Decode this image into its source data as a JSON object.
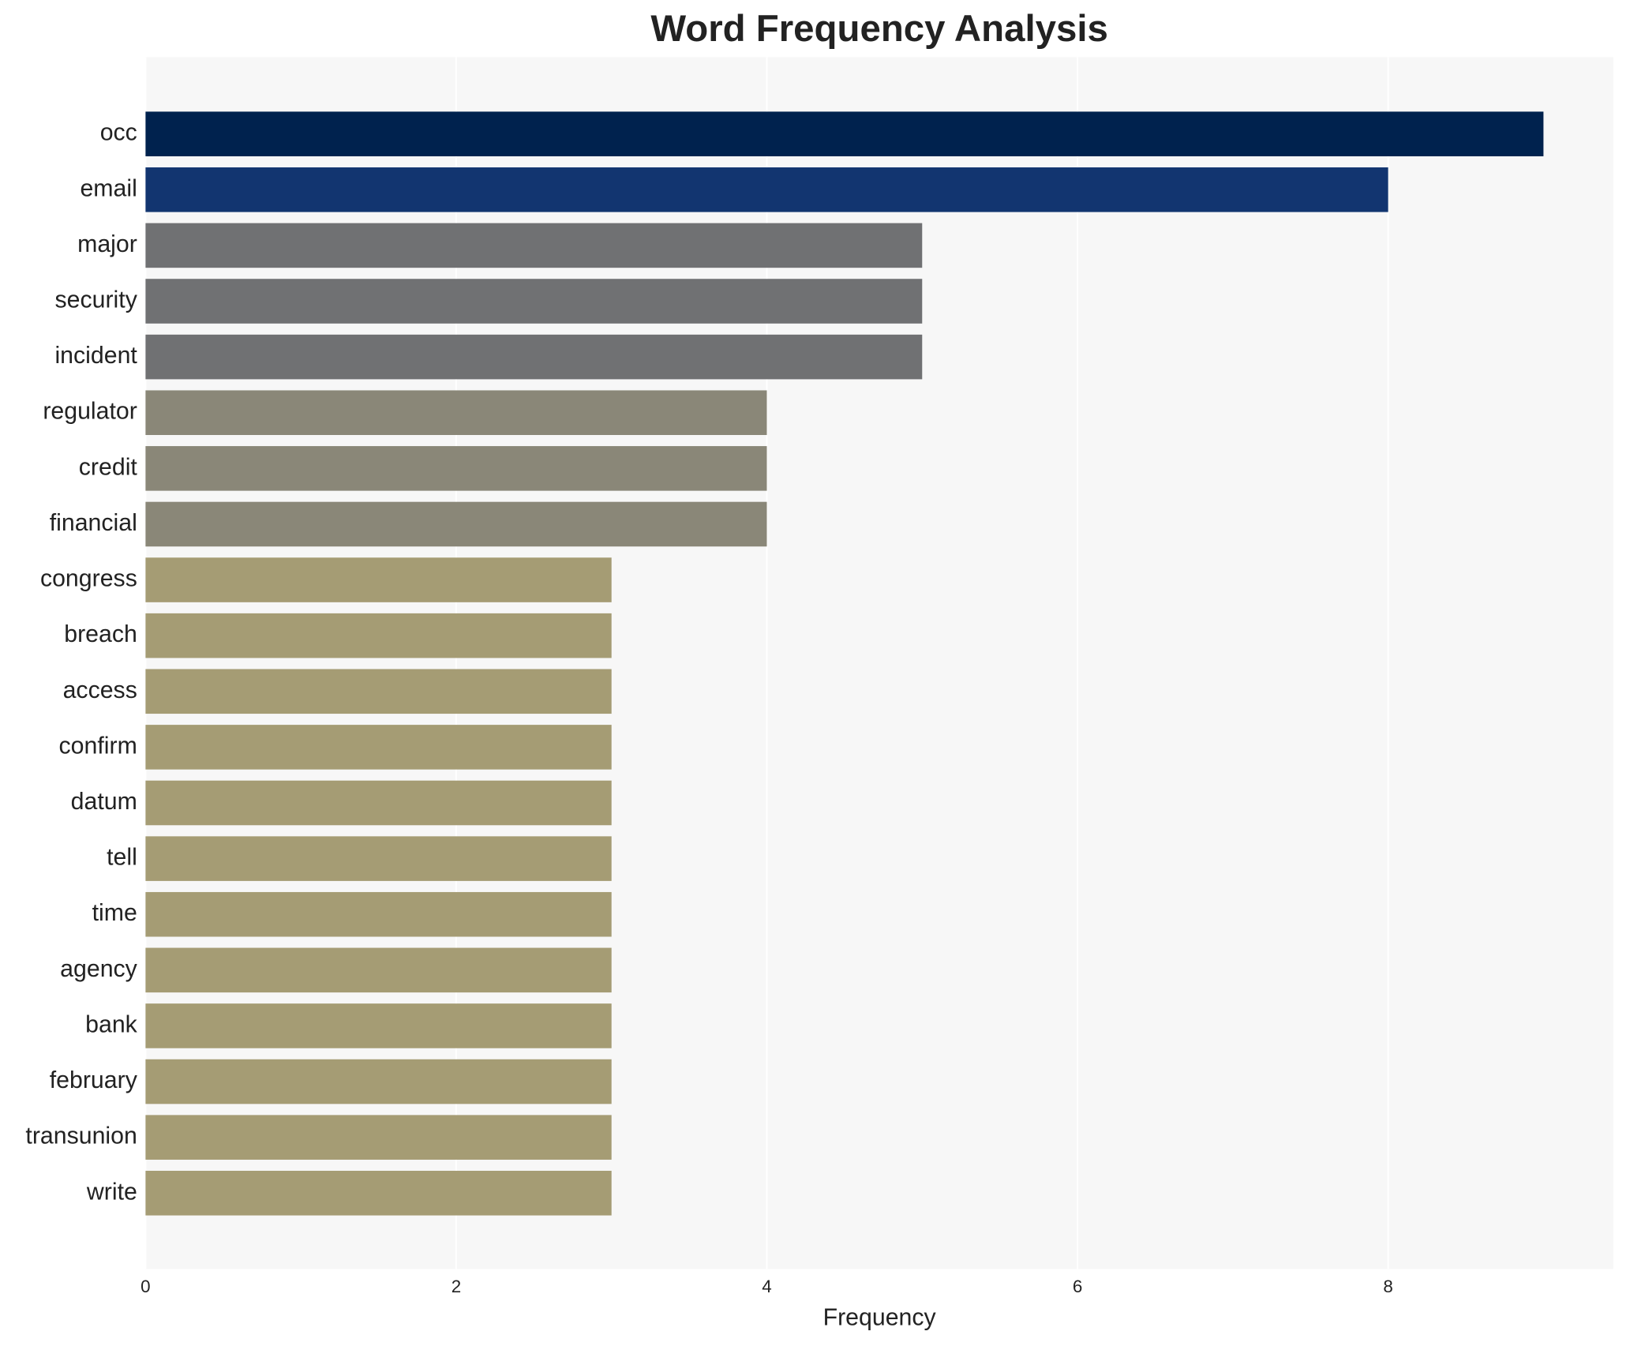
{
  "chart_data": {
    "type": "barh",
    "title": "Word Frequency Analysis",
    "x_label": "Frequency",
    "categories": [
      "occ",
      "email",
      "major",
      "security",
      "incident",
      "regulator",
      "credit",
      "financial",
      "congress",
      "breach",
      "access",
      "confirm",
      "datum",
      "tell",
      "time",
      "agency",
      "bank",
      "february",
      "transunion",
      "write"
    ],
    "values": [
      9,
      8,
      5,
      5,
      5,
      4,
      4,
      4,
      3,
      3,
      3,
      3,
      3,
      3,
      3,
      3,
      3,
      3,
      3,
      3
    ],
    "colors": [
      "#00224e",
      "#123570",
      "#707173",
      "#707173",
      "#707173",
      "#8a8778",
      "#8a8778",
      "#8a8778",
      "#a59c74",
      "#a59c74",
      "#a59c74",
      "#a59c74",
      "#a59c74",
      "#a59c74",
      "#a59c74",
      "#a59c74",
      "#a59c74",
      "#a59c74",
      "#a59c74",
      "#a59c74"
    ],
    "xlim": [
      0,
      9.45
    ],
    "xticks": [
      0,
      2,
      4,
      6,
      8
    ],
    "grid": true
  }
}
